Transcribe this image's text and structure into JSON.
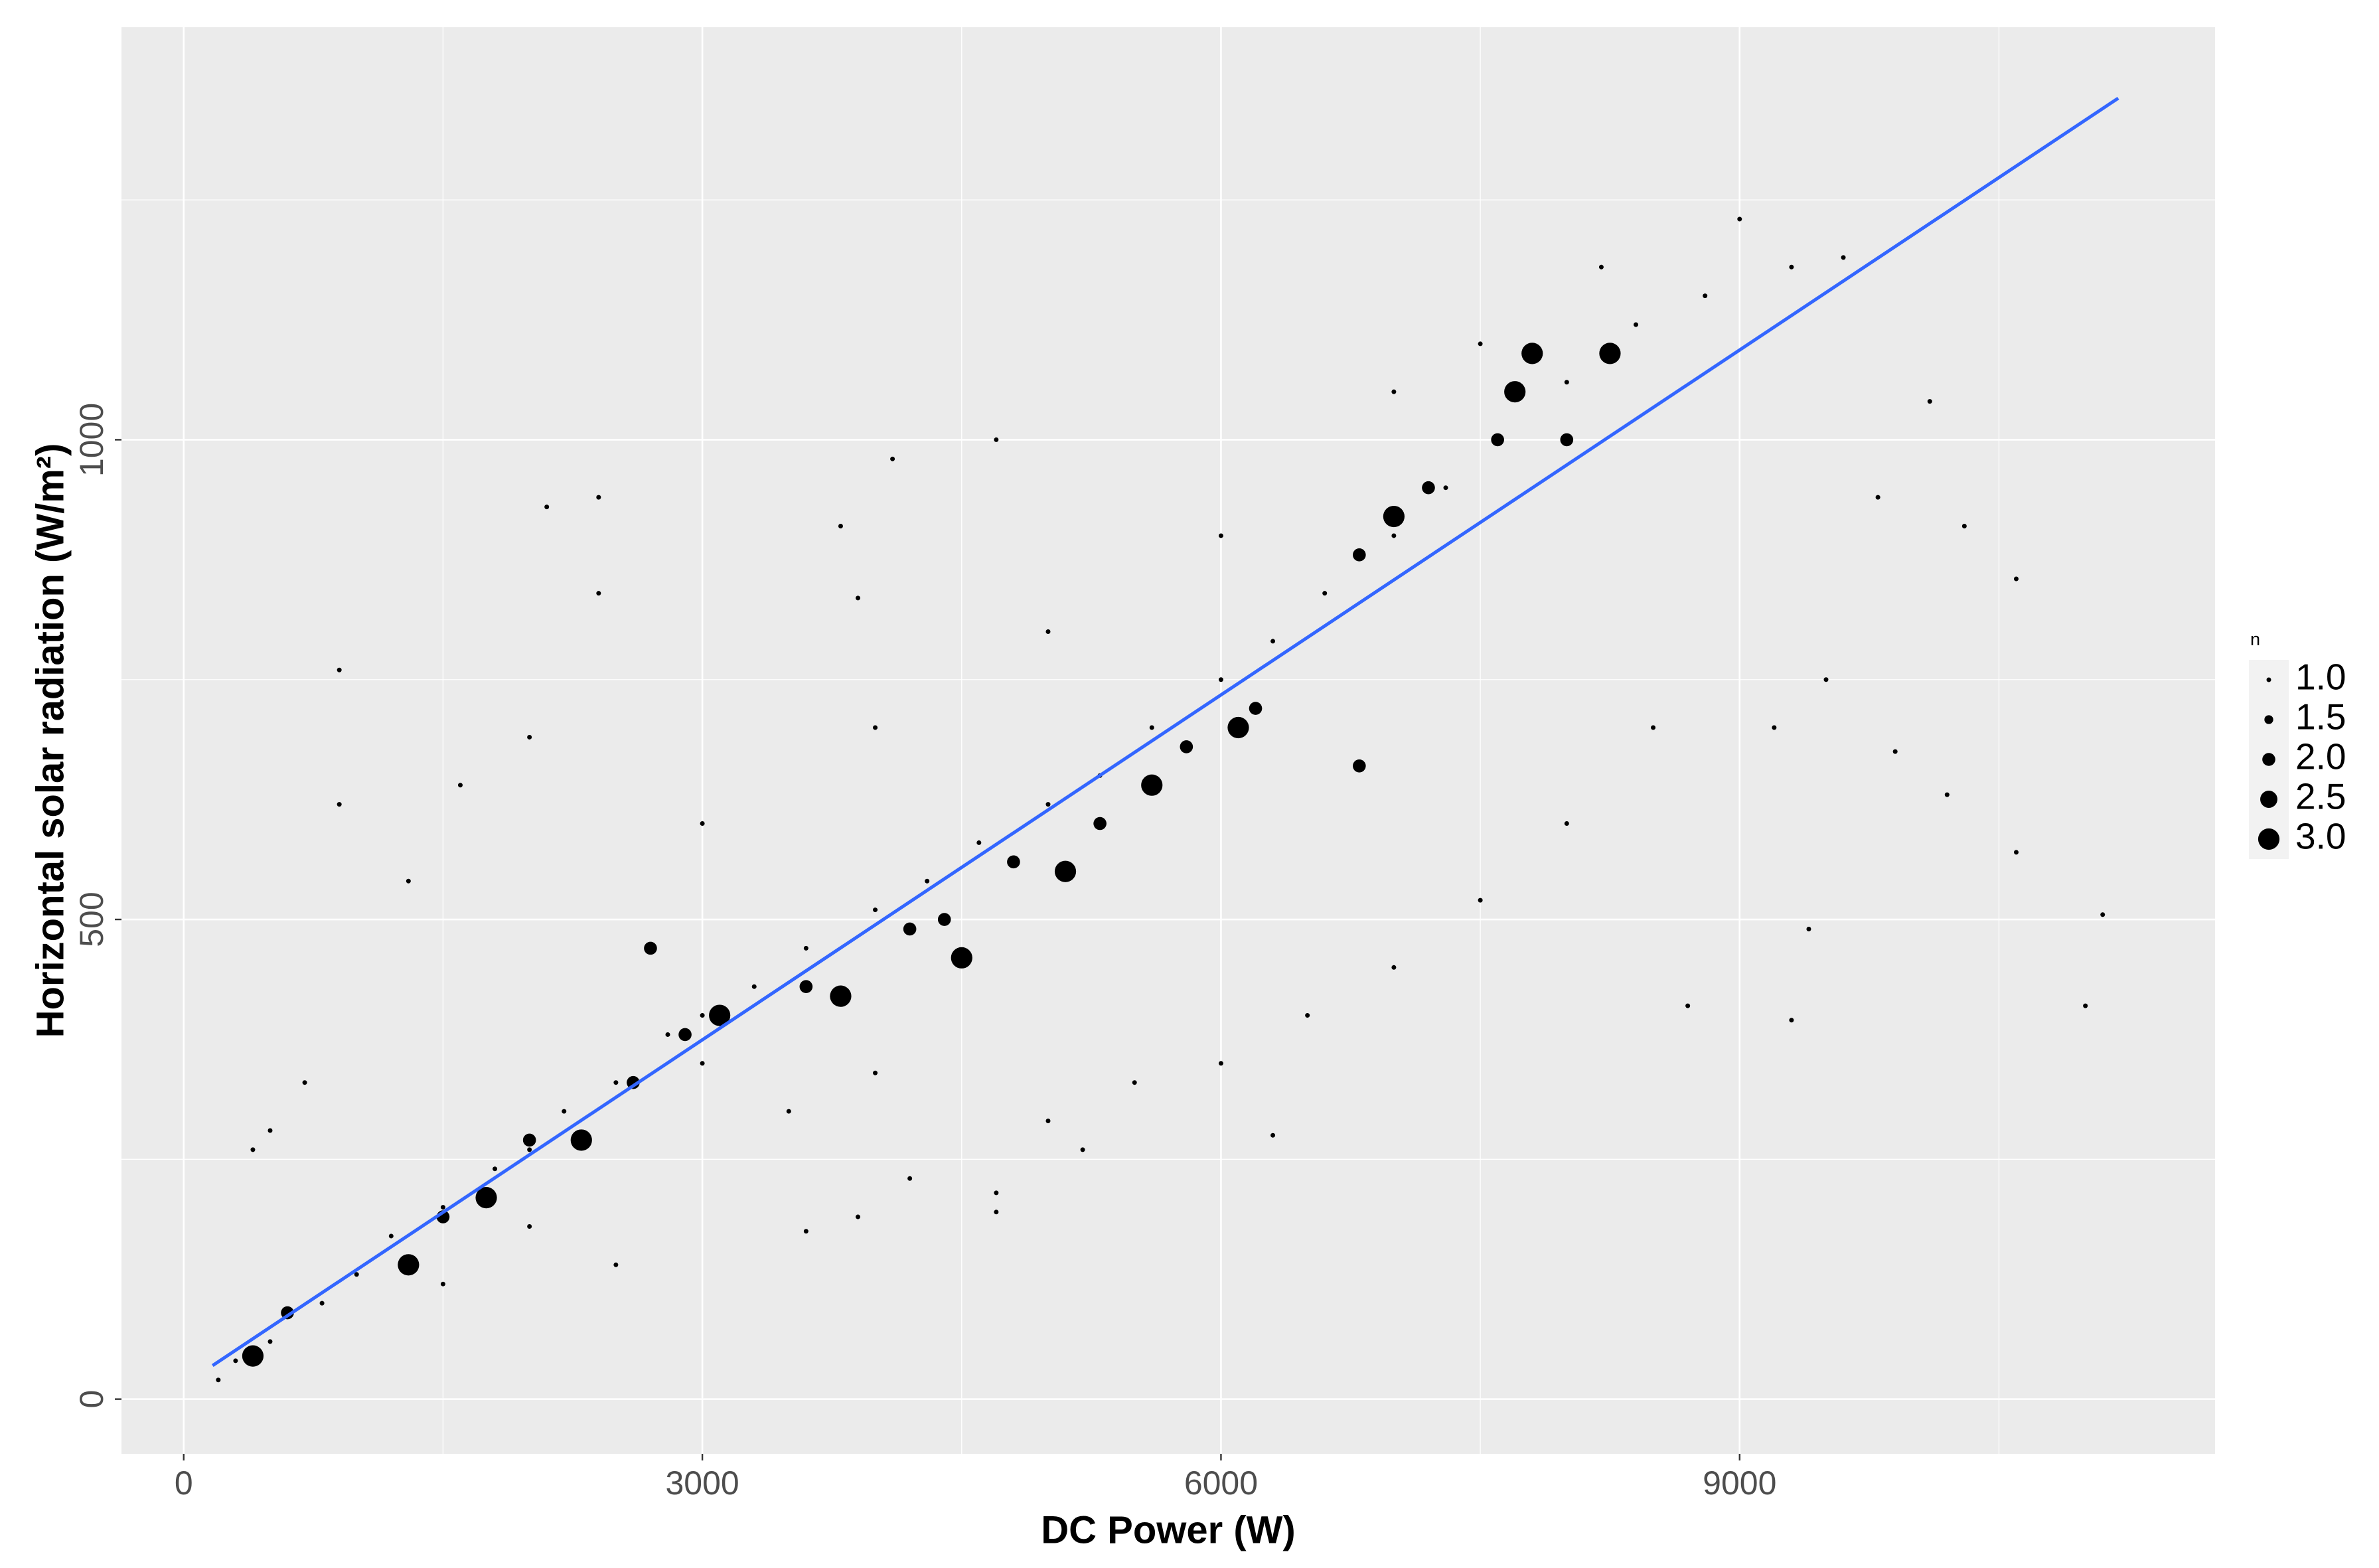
{
  "chart_data": {
    "type": "scatter",
    "x_label": "DC Power (W)",
    "y_label": "Horizontal solar radiation (W/m²)",
    "color": "#000000",
    "x": [
      200,
      300,
      500,
      800,
      1000,
      1200,
      1500,
      1800,
      2000,
      2200,
      2500,
      2800,
      3000,
      3300,
      3600,
      4000,
      4300,
      4600,
      5000,
      5300,
      5600,
      6000,
      6300,
      6600,
      7000,
      7300,
      7600,
      8000,
      8400,
      8800,
      900,
      900,
      2100,
      2400,
      2400,
      3800,
      4100,
      4700,
      3900,
      1300,
      1600,
      2000,
      10100,
      10300,
      10600,
      9800,
      10600,
      11100,
      11000,
      9300,
      8700,
      9400,
      9900,
      10200,
      4700,
      4700,
      3600,
      3900,
      5200,
      6300,
      4200,
      2500,
      400,
      500,
      700,
      9000,
      9300,
      9600,
      9200,
      9500,
      8500,
      8000,
      7500,
      7000,
      6500,
      6000,
      5500,
      5000,
      3000,
      3500,
      4000,
      2000,
      1500,
      3000,
      4000,
      5000,
      6000,
      7000,
      7500,
      8200,
      600,
      1500,
      2000,
      2600,
      2900,
      3600,
      4400,
      4800,
      5300,
      5800,
      6200,
      6800,
      7200,
      7600,
      8000,
      6800,
      4200,
      2700,
      400,
      1300,
      1750,
      2300,
      3100,
      3800,
      4500,
      5100,
      5600,
      6100,
      7000,
      7700,
      7800,
      8250
    ],
    "y": [
      20,
      40,
      60,
      100,
      130,
      170,
      200,
      240,
      260,
      300,
      330,
      380,
      400,
      430,
      470,
      510,
      540,
      580,
      620,
      650,
      700,
      750,
      790,
      840,
      900,
      950,
      1000,
      1060,
      1120,
      1150,
      760,
      620,
      930,
      940,
      840,
      910,
      980,
      1000,
      835,
      540,
      640,
      690,
      1040,
      910,
      855,
      940,
      570,
      505,
      410,
      395,
      410,
      490,
      675,
      630,
      215,
      195,
      175,
      190,
      260,
      275,
      230,
      140,
      260,
      280,
      330,
      1230,
      1180,
      1190,
      700,
      750,
      700,
      600,
      520,
      450,
      400,
      350,
      330,
      290,
      350,
      300,
      340,
      180,
      120,
      600,
      700,
      800,
      900,
      1050,
      1100,
      1180,
      90,
      190,
      270,
      330,
      380,
      430,
      500,
      560,
      600,
      680,
      720,
      880,
      950,
      1000,
      1000,
      660,
      490,
      470,
      45,
      140,
      210,
      270,
      400,
      420,
      460,
      550,
      640,
      700,
      920,
      1050,
      1090,
      1090
    ],
    "sizes": [
      1,
      1,
      1,
      1,
      1,
      1,
      1,
      1,
      1,
      1,
      1,
      1,
      1,
      1,
      1,
      1,
      1,
      1,
      1,
      1,
      1,
      1,
      1,
      1,
      1,
      1,
      1,
      1,
      1,
      1,
      1,
      1,
      1,
      1,
      1,
      1,
      1,
      1,
      1,
      1,
      1,
      1,
      1,
      1,
      1,
      1,
      1,
      1,
      1,
      1,
      1,
      1,
      1,
      1,
      1,
      1,
      1,
      1,
      1,
      1,
      1,
      1,
      1,
      1,
      1,
      1,
      1,
      1,
      1,
      1,
      1,
      1,
      1,
      1,
      1,
      1,
      1,
      1,
      1,
      1,
      1,
      1,
      1,
      1,
      1,
      1,
      1,
      1,
      1,
      1,
      2,
      2,
      2,
      2,
      2,
      2,
      2,
      2,
      2,
      2,
      2,
      2,
      2,
      2,
      2,
      2,
      2,
      2,
      3,
      3,
      3,
      3,
      3,
      3,
      3,
      3,
      3,
      3,
      3,
      3,
      3,
      3
    ],
    "fit_line": {
      "color": "#3366ff",
      "x": [
        167,
        11190
      ],
      "y": [
        35,
        1356
      ]
    },
    "xlim": [
      -360,
      11750
    ],
    "ylim": [
      -57,
      1430
    ],
    "xticks": [
      0,
      3000,
      6000,
      9000
    ],
    "yticks": [
      0,
      500,
      1000
    ],
    "xminorticks": [
      1500,
      4500,
      7500,
      10500
    ],
    "yminorticks": [
      250,
      750,
      1250
    ],
    "grid": true,
    "legend": {
      "title": "n",
      "position": "right",
      "values": [
        {
          "value": 1,
          "label": "1.0"
        },
        {
          "value": 1.5,
          "label": "1.5"
        },
        {
          "value": 2,
          "label": "2.0"
        },
        {
          "value": 2.5,
          "label": "2.5"
        },
        {
          "value": 3,
          "label": "3.0"
        }
      ]
    }
  }
}
